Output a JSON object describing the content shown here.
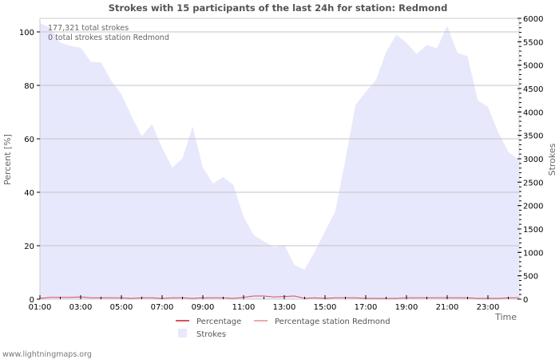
{
  "chart_data": {
    "type": "area",
    "title": "Strokes with 15 participants of the last 24h for station: Redmond",
    "xlabel": "Time",
    "ylabel_left": "Percent   [%]",
    "ylabel_right": "Strokes",
    "ylim_left": [
      0,
      105
    ],
    "ylim_right": [
      0,
      6000
    ],
    "left_ticks": [
      "0",
      "20",
      "40",
      "60",
      "80",
      "100"
    ],
    "right_ticks": [
      "0",
      "500",
      "1000",
      "1500",
      "2000",
      "2500",
      "3000",
      "3500",
      "4000",
      "4500",
      "5000",
      "5500",
      "6000"
    ],
    "x_ticks": [
      "01:00",
      "03:00",
      "05:00",
      "07:00",
      "09:00",
      "11:00",
      "13:00",
      "15:00",
      "17:00",
      "19:00",
      "21:00",
      "23:00"
    ],
    "grid": true,
    "legend_position": "bottom",
    "annotations": [
      "177,321 total strokes",
      "0 total strokes station Redmond"
    ],
    "x": [
      "01:00",
      "01:30",
      "02:00",
      "02:30",
      "03:00",
      "03:30",
      "04:00",
      "04:30",
      "05:00",
      "05:30",
      "06:00",
      "06:30",
      "07:00",
      "07:30",
      "08:00",
      "08:30",
      "09:00",
      "09:30",
      "10:00",
      "10:30",
      "11:00",
      "11:30",
      "12:00",
      "12:30",
      "13:00",
      "13:30",
      "14:00",
      "14:30",
      "15:00",
      "15:30",
      "16:00",
      "16:30",
      "17:00",
      "17:30",
      "18:00",
      "18:30",
      "19:00",
      "19:30",
      "20:00",
      "20:30",
      "21:00",
      "21:30",
      "22:00",
      "22:30",
      "23:00",
      "23:30",
      "00:00",
      "00:30"
    ],
    "series": [
      {
        "name": "Strokes",
        "axis": "right",
        "color": "#e8e8fc",
        "values": [
          5900,
          5800,
          5480,
          5410,
          5375,
          5070,
          5060,
          4670,
          4380,
          3910,
          3480,
          3740,
          3230,
          2810,
          3010,
          3690,
          2810,
          2470,
          2610,
          2440,
          1760,
          1370,
          1230,
          1110,
          1160,
          730,
          630,
          1020,
          1450,
          1870,
          2980,
          4150,
          4430,
          4680,
          5280,
          5650,
          5480,
          5240,
          5430,
          5360,
          5840,
          5260,
          5190,
          4250,
          4110,
          3570,
          3150,
          2980
        ]
      },
      {
        "name": "Percentage",
        "axis": "left",
        "color": "#d9505a",
        "values": [
          0.3,
          0.7,
          0.7,
          0.7,
          0.8,
          0.5,
          0.5,
          0.5,
          0.5,
          0.3,
          0.5,
          0.5,
          0.3,
          0.5,
          0.5,
          0.3,
          0.5,
          0.5,
          0.5,
          0.3,
          0.7,
          1.2,
          1.2,
          0.8,
          1.0,
          1.2,
          0.3,
          0.5,
          0.3,
          0.5,
          0.5,
          0.5,
          0.3,
          0.3,
          0.3,
          0.3,
          0.5,
          0.5,
          0.5,
          0.5,
          0.5,
          0.5,
          0.5,
          0.3,
          0.3,
          0.3,
          0.5,
          0.5
        ]
      },
      {
        "name": "Percentage station Redmond",
        "axis": "left",
        "color": "#f4a6a6",
        "values": []
      }
    ]
  },
  "legend": {
    "percentage": "Percentage",
    "percentage_station": "Percentage station Redmond",
    "strokes": "Strokes"
  },
  "footer": {
    "site": "www.lightningmaps.org"
  }
}
